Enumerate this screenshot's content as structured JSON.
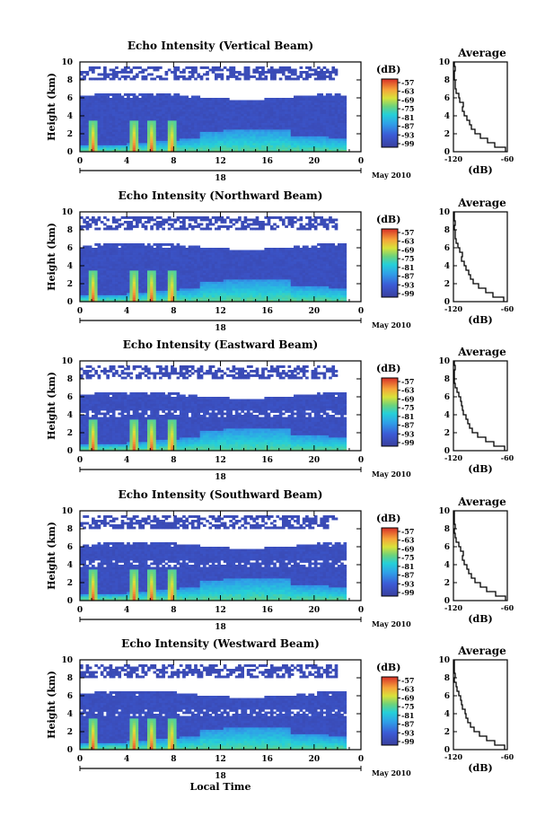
{
  "chart_data": [
    {
      "type": "heatmap",
      "title": "Echo Intensity (Vertical Beam)",
      "ylabel": "Height (km)",
      "xlim": [
        0,
        24
      ],
      "ylim": [
        0,
        10
      ],
      "xticks": [
        "0",
        "4",
        "8",
        "12",
        "16",
        "20",
        "0"
      ],
      "yticks": [
        "0",
        "2",
        "4",
        "6",
        "8",
        "10"
      ],
      "date_day": "18",
      "date_label": "May 2010",
      "colorbar": {
        "unit": "(dB)",
        "ticks": [
          "-57",
          "-63",
          "-69",
          "-75",
          "-81",
          "-87",
          "-93",
          "-99"
        ]
      },
      "profile": {
        "title": "Average",
        "xlabel": "(dB)",
        "xticks": [
          "-120",
          "-60"
        ],
        "xlim": [
          -120,
          -60
        ],
        "ylim": [
          0,
          10
        ],
        "height": [
          0,
          0.5,
          1,
          1.5,
          2,
          2.5,
          3,
          3.5,
          4,
          4.5,
          5,
          5.5,
          6,
          6.5,
          7,
          7.5,
          8,
          8.5,
          9,
          9.5,
          10
        ],
        "db": [
          -62,
          -74,
          -82,
          -90,
          -96,
          -100,
          -102,
          -105,
          -108,
          -110,
          -109,
          -113,
          -114,
          -117,
          -118,
          -118,
          -119,
          -119,
          -118,
          -119,
          -119
        ]
      }
    },
    {
      "type": "heatmap",
      "title": "Echo Intensity (Northward Beam)",
      "ylabel": "Height (km)",
      "xlim": [
        0,
        24
      ],
      "ylim": [
        0,
        10
      ],
      "xticks": [
        "0",
        "4",
        "8",
        "12",
        "16",
        "20",
        "0"
      ],
      "yticks": [
        "0",
        "2",
        "4",
        "6",
        "8",
        "10"
      ],
      "date_day": "18",
      "date_label": "May 2010",
      "colorbar": {
        "unit": "(dB)",
        "ticks": [
          "-57",
          "-63",
          "-69",
          "-75",
          "-81",
          "-87",
          "-93",
          "-99"
        ]
      },
      "profile": {
        "title": "Average",
        "xlabel": "(dB)",
        "xticks": [
          "-120",
          "-60"
        ],
        "xlim": [
          -120,
          -60
        ],
        "ylim": [
          0,
          10
        ],
        "height": [
          0,
          0.5,
          1,
          1.5,
          2,
          2.5,
          3,
          3.5,
          4,
          4.5,
          5,
          5.5,
          6,
          6.5,
          7,
          7.5,
          8,
          8.5,
          9,
          9.5,
          10
        ],
        "db": [
          -64,
          -76,
          -84,
          -92,
          -98,
          -101,
          -103,
          -106,
          -108,
          -111,
          -110,
          -113,
          -115,
          -117,
          -118,
          -118,
          -119,
          -118,
          -119,
          -119,
          -119
        ]
      }
    },
    {
      "type": "heatmap",
      "title": "Echo Intensity (Eastward Beam)",
      "ylabel": "Height (km)",
      "xlim": [
        0,
        24
      ],
      "ylim": [
        0,
        10
      ],
      "xticks": [
        "0",
        "4",
        "8",
        "12",
        "16",
        "20",
        "0"
      ],
      "yticks": [
        "0",
        "2",
        "4",
        "6",
        "8",
        "10"
      ],
      "date_day": "18",
      "date_label": "May 2010",
      "colorbar": {
        "unit": "(dB)",
        "ticks": [
          "-57",
          "-63",
          "-69",
          "-75",
          "-81",
          "-87",
          "-93",
          "-99"
        ]
      },
      "profile": {
        "title": "Average",
        "xlabel": "(dB)",
        "xticks": [
          "-120",
          "-60"
        ],
        "xlim": [
          -120,
          -60
        ],
        "ylim": [
          0,
          10
        ],
        "height": [
          0,
          0.5,
          1,
          1.5,
          2,
          2.5,
          3,
          3.5,
          4,
          4.5,
          5,
          5.5,
          6,
          6.5,
          7,
          7.5,
          8,
          8.5,
          9,
          9.5,
          10
        ],
        "db": [
          -63,
          -75,
          -84,
          -93,
          -99,
          -102,
          -104,
          -106,
          -109,
          -110,
          -111,
          -112,
          -114,
          -116,
          -118,
          -119,
          -119,
          -119,
          -118,
          -119,
          -119
        ]
      }
    },
    {
      "type": "heatmap",
      "title": "Echo Intensity (Southward Beam)",
      "ylabel": "Height (km)",
      "xlim": [
        0,
        24
      ],
      "ylim": [
        0,
        10
      ],
      "xticks": [
        "0",
        "4",
        "8",
        "12",
        "16",
        "20",
        "0"
      ],
      "yticks": [
        "0",
        "2",
        "4",
        "6",
        "8",
        "10"
      ],
      "date_day": "18",
      "date_label": "May 2010",
      "colorbar": {
        "unit": "(dB)",
        "ticks": [
          "-57",
          "-63",
          "-69",
          "-75",
          "-81",
          "-87",
          "-93",
          "-99"
        ]
      },
      "profile": {
        "title": "Average",
        "xlabel": "(dB)",
        "xticks": [
          "-120",
          "-60"
        ],
        "xlim": [
          -120,
          -60
        ],
        "ylim": [
          0,
          10
        ],
        "height": [
          0,
          0.5,
          1,
          1.5,
          2,
          2.5,
          3,
          3.5,
          4,
          4.5,
          5,
          5.5,
          6,
          6.5,
          7,
          7.5,
          8,
          8.5,
          9,
          9.5,
          10
        ],
        "db": [
          -62,
          -73,
          -83,
          -90,
          -96,
          -100,
          -103,
          -105,
          -108,
          -110,
          -109,
          -112,
          -114,
          -117,
          -118,
          -119,
          -118,
          -119,
          -119,
          -119,
          -119
        ]
      }
    },
    {
      "type": "heatmap",
      "title": "Echo Intensity (Westward Beam)",
      "ylabel": "Height (km)",
      "xlabel": "Local Time",
      "xlim": [
        0,
        24
      ],
      "ylim": [
        0,
        10
      ],
      "xticks": [
        "0",
        "4",
        "8",
        "12",
        "16",
        "20",
        "0"
      ],
      "yticks": [
        "0",
        "2",
        "4",
        "6",
        "8",
        "10"
      ],
      "date_day": "18",
      "date_label": "May 2010",
      "colorbar": {
        "unit": "(dB)",
        "ticks": [
          "-57",
          "-63",
          "-69",
          "-75",
          "-81",
          "-87",
          "-93",
          "-99"
        ]
      },
      "profile": {
        "title": "Average",
        "xlabel": "(dB)",
        "xticks": [
          "-120",
          "-60"
        ],
        "xlim": [
          -120,
          -60
        ],
        "ylim": [
          0,
          10
        ],
        "height": [
          0,
          0.5,
          1,
          1.5,
          2,
          2.5,
          3,
          3.5,
          4,
          4.5,
          5,
          5.5,
          6,
          6.5,
          7,
          7.5,
          8,
          8.5,
          9,
          9.5,
          10
        ],
        "db": [
          -63,
          -74,
          -83,
          -91,
          -97,
          -101,
          -104,
          -106,
          -107,
          -110,
          -111,
          -112,
          -114,
          -116,
          -117,
          -119,
          -118,
          -119,
          -119,
          -119,
          -119
        ]
      }
    }
  ]
}
